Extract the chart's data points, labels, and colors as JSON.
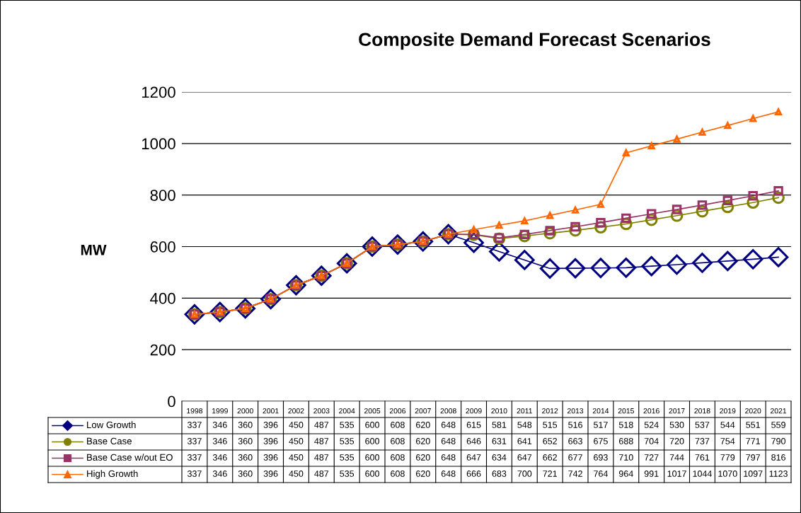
{
  "chart_data": {
    "type": "line",
    "title": "Composite Demand Forecast Scenarios",
    "ylabel": "MW",
    "categories": [
      "1998",
      "1999",
      "2000",
      "2001",
      "2002",
      "2003",
      "2004",
      "2005",
      "2006",
      "2007",
      "2008",
      "2009",
      "2010",
      "2011",
      "2012",
      "2013",
      "2014",
      "2015",
      "2016",
      "2017",
      "2018",
      "2019",
      "2020",
      "2021"
    ],
    "series": [
      {
        "name": "Low Growth",
        "color": "#000080",
        "marker": "diamond",
        "values": [
          337,
          346,
          360,
          396,
          450,
          487,
          535,
          600,
          608,
          620,
          648,
          615,
          581,
          548,
          515,
          516,
          517,
          518,
          524,
          530,
          537,
          544,
          551,
          559
        ]
      },
      {
        "name": "Base Case",
        "color": "#808000",
        "marker": "circle",
        "values": [
          337,
          346,
          360,
          396,
          450,
          487,
          535,
          600,
          608,
          620,
          648,
          646,
          631,
          641,
          652,
          663,
          675,
          688,
          704,
          720,
          737,
          754,
          771,
          790
        ]
      },
      {
        "name": "Base Case w/out EO",
        "color": "#993366",
        "marker": "square",
        "values": [
          337,
          346,
          360,
          396,
          450,
          487,
          535,
          600,
          608,
          620,
          648,
          647,
          634,
          647,
          662,
          677,
          693,
          710,
          727,
          744,
          761,
          779,
          797,
          816
        ]
      },
      {
        "name": "High Growth",
        "color": "#ff6600",
        "marker": "triangle",
        "values": [
          337,
          346,
          360,
          396,
          450,
          487,
          535,
          600,
          608,
          620,
          648,
          666,
          683,
          700,
          721,
          742,
          764,
          964,
          991,
          1017,
          1044,
          1070,
          1097,
          1123
        ]
      }
    ],
    "ylim": [
      0,
      1200
    ],
    "yticks": [
      0,
      200,
      400,
      600,
      800,
      1000,
      1200
    ],
    "grid": "y",
    "legend": "bottom left",
    "data_labels": true,
    "line_style": "solid"
  }
}
